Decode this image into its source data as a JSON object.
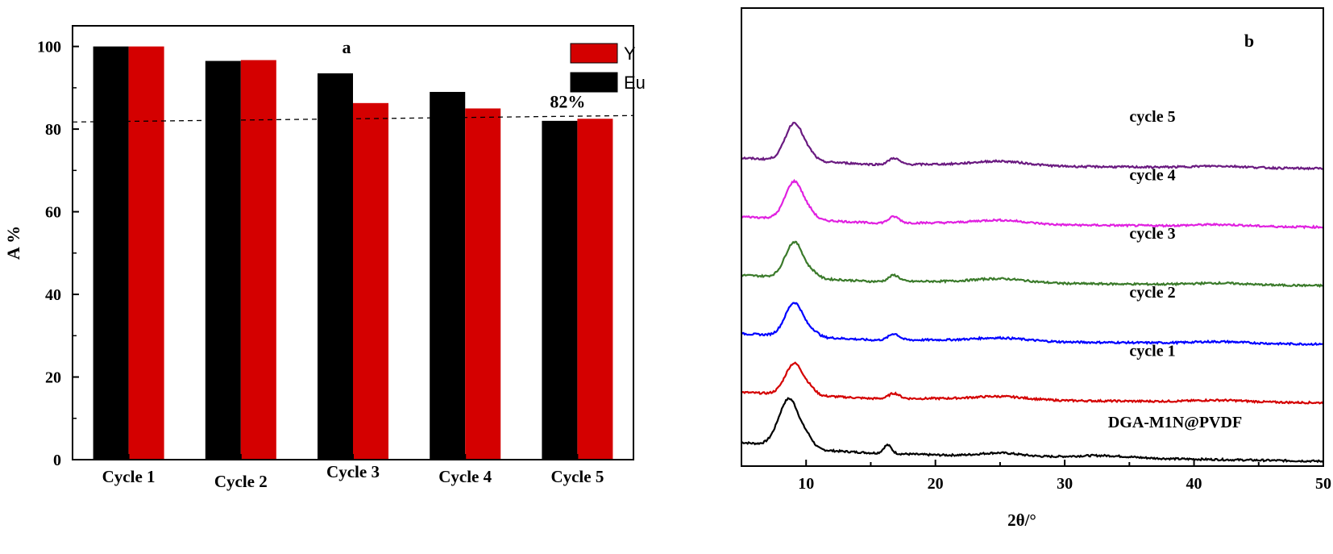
{
  "chart_data": [
    {
      "type": "bar",
      "panel_label": "a",
      "ylabel": "A %",
      "xlabel": "",
      "ylim": [
        0,
        105
      ],
      "yticks": [
        0,
        20,
        40,
        60,
        80,
        100
      ],
      "categories": [
        "Cycle 1",
        "Cycle 2",
        "Cycle 3",
        "Cycle 4",
        "Cycle 5"
      ],
      "series": [
        {
          "name": "Eu",
          "color": "#000000",
          "values": [
            100,
            96.5,
            93.5,
            89,
            82
          ]
        },
        {
          "name": "Y",
          "color": "#d40000",
          "values": [
            100,
            96.7,
            86.3,
            85,
            82.5
          ]
        }
      ],
      "legend": {
        "placement": "top-right",
        "order": [
          "Y",
          "Eu"
        ]
      },
      "reference_line": {
        "value": 82.5,
        "label": "82%",
        "style": "dashed"
      }
    },
    {
      "type": "line",
      "panel_label": "b",
      "xlabel": "2θ/°",
      "xlim": [
        5,
        50
      ],
      "xticks": [
        10,
        20,
        30,
        40,
        50
      ],
      "yaxis_visible": false,
      "series": [
        {
          "name": "DGA-M1N@PVDF",
          "color": "#000000",
          "offset": 0,
          "baseline": [
            [
              5,
              9
            ],
            [
              12,
              5
            ],
            [
              15,
              4
            ],
            [
              20,
              3
            ],
            [
              30,
              2
            ],
            [
              40,
              1
            ],
            [
              50,
              0
            ]
          ],
          "peaks": [
            [
              8.7,
              23,
              0.8
            ],
            [
              10.2,
              3,
              0.4
            ],
            [
              16.3,
              4,
              0.3
            ],
            [
              25,
              1.5,
              1.5
            ],
            [
              33,
              1,
              2
            ]
          ]
        },
        {
          "name": "cycle 1",
          "color": "#d40000",
          "offset": 55,
          "baseline": [
            [
              5,
              5
            ],
            [
              12,
              3
            ],
            [
              15,
              2
            ],
            [
              20,
              2
            ],
            [
              30,
              1
            ],
            [
              40,
              0.5
            ],
            [
              50,
              0
            ]
          ],
          "peaks": [
            [
              9.1,
              15,
              0.7
            ],
            [
              10.4,
              2,
              0.4
            ],
            [
              16.8,
              2.5,
              0.4
            ],
            [
              25,
              1.5,
              2
            ],
            [
              42,
              0.8,
              2
            ]
          ]
        },
        {
          "name": "cycle  2",
          "color": "#0000ff",
          "offset": 110,
          "baseline": [
            [
              5,
              5
            ],
            [
              12,
              3
            ],
            [
              15,
              2
            ],
            [
              20,
              2
            ],
            [
              30,
              1
            ],
            [
              40,
              0.5
            ],
            [
              50,
              0
            ]
          ],
          "peaks": [
            [
              9.1,
              16,
              0.7
            ],
            [
              10.6,
              2,
              0.4
            ],
            [
              16.8,
              3,
              0.4
            ],
            [
              25,
              1.5,
              2
            ],
            [
              42,
              0.8,
              2
            ]
          ]
        },
        {
          "name": "cycle 3",
          "color": "#3a7a2a",
          "offset": 165,
          "baseline": [
            [
              5,
              5
            ],
            [
              12,
              3
            ],
            [
              15,
              2
            ],
            [
              20,
              2
            ],
            [
              30,
              1
            ],
            [
              40,
              0.5
            ],
            [
              50,
              0
            ]
          ],
          "peaks": [
            [
              9.1,
              17,
              0.7
            ],
            [
              10.6,
              2,
              0.4
            ],
            [
              16.8,
              3,
              0.4
            ],
            [
              25,
              1.8,
              2
            ],
            [
              42,
              0.8,
              2
            ]
          ]
        },
        {
          "name": "cycle 4",
          "color": "#e020e0",
          "offset": 220,
          "baseline": [
            [
              5,
              5
            ],
            [
              12,
              3
            ],
            [
              15,
              2
            ],
            [
              20,
              2
            ],
            [
              30,
              1
            ],
            [
              40,
              0.5
            ],
            [
              50,
              0
            ]
          ],
          "peaks": [
            [
              9.1,
              18,
              0.7
            ],
            [
              10.4,
              2,
              0.4
            ],
            [
              16.8,
              3,
              0.4
            ],
            [
              25,
              1.8,
              2
            ],
            [
              42,
              0.8,
              2
            ]
          ]
        },
        {
          "name": "cycle  5",
          "color": "#6a1a80",
          "offset": 275,
          "baseline": [
            [
              5,
              5
            ],
            [
              12,
              3
            ],
            [
              15,
              2
            ],
            [
              20,
              2
            ],
            [
              30,
              1
            ],
            [
              40,
              0.5
            ],
            [
              50,
              0
            ]
          ],
          "peaks": [
            [
              9.1,
              18,
              0.7
            ],
            [
              10.4,
              2,
              0.4
            ],
            [
              16.8,
              3,
              0.4
            ],
            [
              25,
              2,
              2
            ],
            [
              42,
              0.8,
              2
            ]
          ]
        }
      ]
    }
  ]
}
